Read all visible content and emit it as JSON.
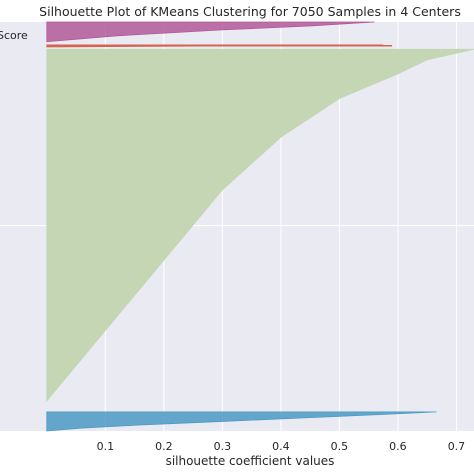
{
  "chart_data": {
    "type": "area",
    "title": "Silhouette Plot of KMeans Clustering for 7050 Samples in 4 Centers",
    "xlabel": "silhouette coefficient values",
    "ylabel": "",
    "xlim": [
      -0.08,
      0.73
    ],
    "ylim": [
      0,
      7050
    ],
    "x_ticks": [
      0.1,
      0.2,
      0.3,
      0.4,
      0.5,
      0.6,
      0.7
    ],
    "x_tick_labels": [
      "0.1",
      "0.2",
      "0.3",
      "0.4",
      "0.5",
      "0.6",
      "0.7"
    ],
    "grid": true,
    "legend_text": "Score",
    "average_score": 0.59,
    "series": [
      {
        "cluster": 0,
        "color": "#4C9AC4",
        "y_start": 0,
        "y_end": 330,
        "profile": [
          [
            0,
            0.666
          ],
          [
            0.1,
            0.6
          ],
          [
            0.3,
            0.45
          ],
          [
            0.5,
            0.3
          ],
          [
            0.7,
            0.15
          ],
          [
            0.85,
            0.06
          ],
          [
            1,
            0.0
          ]
        ]
      },
      {
        "cluster": 1,
        "color": "#C4D6B4",
        "y_start": 520,
        "y_end": 6580,
        "profile": [
          [
            0,
            0.73
          ],
          [
            0.03,
            0.65
          ],
          [
            0.07,
            0.6
          ],
          [
            0.14,
            0.5
          ],
          [
            0.25,
            0.4
          ],
          [
            0.4,
            0.3
          ],
          [
            0.6,
            0.2
          ],
          [
            0.8,
            0.1
          ],
          [
            1,
            0.0
          ]
        ]
      },
      {
        "cluster": 2,
        "color": "#D5634E",
        "y_start": 6620,
        "y_end": 6655,
        "profile": [
          [
            0,
            0.575
          ],
          [
            0.5,
            0.3
          ],
          [
            1,
            0.0
          ]
        ]
      },
      {
        "cluster": 3,
        "color": "#B3599A",
        "y_start": 6710,
        "y_end": 7050,
        "profile": [
          [
            0,
            0.56
          ],
          [
            0.2,
            0.45
          ],
          [
            0.4,
            0.3
          ],
          [
            0.7,
            0.12
          ],
          [
            1,
            0.0
          ]
        ]
      }
    ]
  }
}
